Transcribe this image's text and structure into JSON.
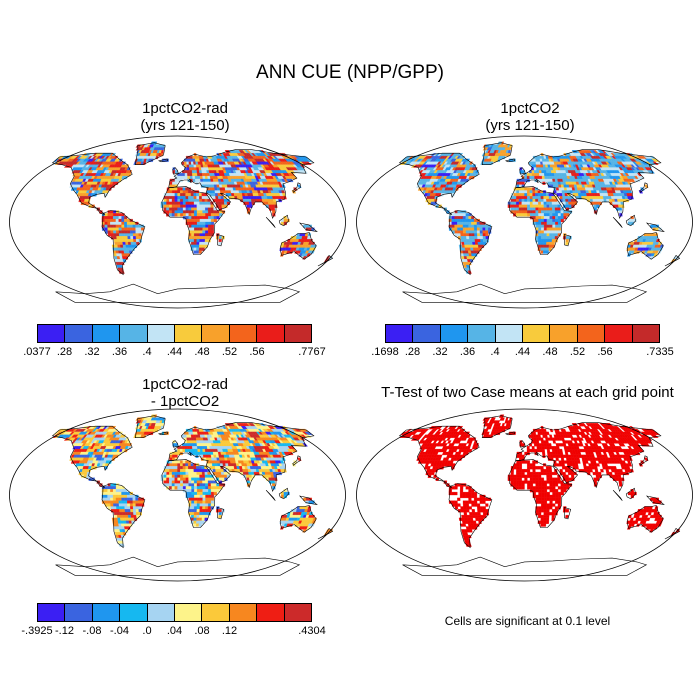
{
  "figure": {
    "title": "ANN CUE (NPP/GPP)"
  },
  "panels": [
    {
      "id": "rad",
      "title_line1": "1pctCO2-rad",
      "title_line2": "(yrs 121-150)",
      "palette": [
        "#3b1ff3",
        "#3a64e0",
        "#1f96ef",
        "#56b4e6",
        "#c2e4f5",
        "#f8cb3c",
        "#f8a12b",
        "#f3641c",
        "#ea1d1a",
        "#c42a2a"
      ],
      "land_weights": [
        0.04,
        0.05,
        0.08,
        0.16,
        0.1,
        0.1,
        0.1,
        0.1,
        0.12,
        0.15
      ],
      "colorbar_labels": [
        ".0377",
        ".28",
        ".32",
        ".36",
        ".4",
        ".44",
        ".48",
        ".52",
        ".56",
        ".7767"
      ],
      "range": [
        0.0377,
        0.7767
      ]
    },
    {
      "id": "ctl",
      "title_line1": "1pctCO2",
      "title_line2": "(yrs 121-150)",
      "palette": [
        "#3b1ff3",
        "#3a64e0",
        "#1f96ef",
        "#56b4e6",
        "#c2e4f5",
        "#f8cb3c",
        "#f8a12b",
        "#f3641c",
        "#ea1d1a",
        "#c42a2a"
      ],
      "land_weights": [
        0.02,
        0.05,
        0.12,
        0.28,
        0.14,
        0.08,
        0.08,
        0.08,
        0.07,
        0.08
      ],
      "colorbar_labels": [
        ".1698",
        ".28",
        ".32",
        ".36",
        ".4",
        ".44",
        ".48",
        ".52",
        ".56",
        ".7335"
      ],
      "range": [
        0.1698,
        0.7335
      ]
    },
    {
      "id": "diff",
      "title_line1": "1pctCO2-rad",
      "title_line2": "- 1pctCO2",
      "palette": [
        "#3b1ff3",
        "#3a64e0",
        "#1f96ef",
        "#16b8f0",
        "#a6d4f2",
        "#fdf38a",
        "#fbc93a",
        "#f7871f",
        "#ef1e14",
        "#cc2a2a"
      ],
      "land_weights": [
        0.02,
        0.04,
        0.06,
        0.08,
        0.14,
        0.18,
        0.16,
        0.14,
        0.1,
        0.08
      ],
      "colorbar_labels": [
        "-.3925",
        "-.12",
        "-.08",
        "-.04",
        ".0",
        ".04",
        ".08",
        ".12",
        "",
        ".4304"
      ],
      "range": [
        -0.3925,
        0.4304
      ]
    },
    {
      "id": "ttest",
      "title_line1": "T-Test of two Case means at each grid point",
      "significant_color": "#f00000",
      "significant_fraction": 0.78,
      "note": "Cells are significant at 0.1 level"
    }
  ]
}
